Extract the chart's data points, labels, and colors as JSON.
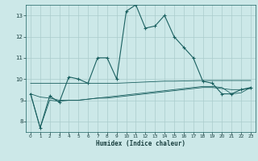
{
  "xlabel": "Humidex (Indice chaleur)",
  "xlim": [
    -0.5,
    23.5
  ],
  "ylim": [
    7.5,
    13.5
  ],
  "yticks": [
    8,
    9,
    10,
    11,
    12,
    13
  ],
  "xticks": [
    0,
    1,
    2,
    3,
    4,
    5,
    6,
    7,
    8,
    9,
    10,
    11,
    12,
    13,
    14,
    15,
    16,
    17,
    18,
    19,
    20,
    21,
    22,
    23
  ],
  "bg_color": "#cce8e8",
  "grid_color": "#aacccc",
  "line_color": "#1a6060",
  "series_main": [
    9.3,
    7.7,
    9.2,
    8.9,
    10.1,
    10.0,
    9.8,
    11.0,
    11.0,
    10.0,
    13.2,
    13.5,
    12.4,
    12.5,
    13.0,
    12.0,
    11.5,
    11.0,
    9.9,
    9.8,
    9.3,
    9.3,
    9.5,
    9.6
  ],
  "series_flat1": [
    9.8,
    9.8,
    9.8,
    9.8,
    9.8,
    9.8,
    9.8,
    9.8,
    9.8,
    9.8,
    9.82,
    9.84,
    9.86,
    9.88,
    9.9,
    9.9,
    9.91,
    9.92,
    9.93,
    9.93,
    9.93,
    9.93,
    9.93,
    9.93
  ],
  "series_flat2": [
    9.3,
    9.15,
    9.1,
    9.0,
    9.0,
    9.0,
    9.05,
    9.1,
    9.1,
    9.15,
    9.2,
    9.25,
    9.3,
    9.35,
    9.4,
    9.45,
    9.5,
    9.55,
    9.6,
    9.6,
    9.55,
    9.5,
    9.5,
    9.55
  ],
  "series_flat3": [
    9.3,
    7.7,
    9.0,
    8.95,
    9.0,
    9.0,
    9.05,
    9.1,
    9.15,
    9.2,
    9.25,
    9.3,
    9.35,
    9.4,
    9.45,
    9.5,
    9.55,
    9.6,
    9.65,
    9.65,
    9.6,
    9.3,
    9.35,
    9.6
  ]
}
